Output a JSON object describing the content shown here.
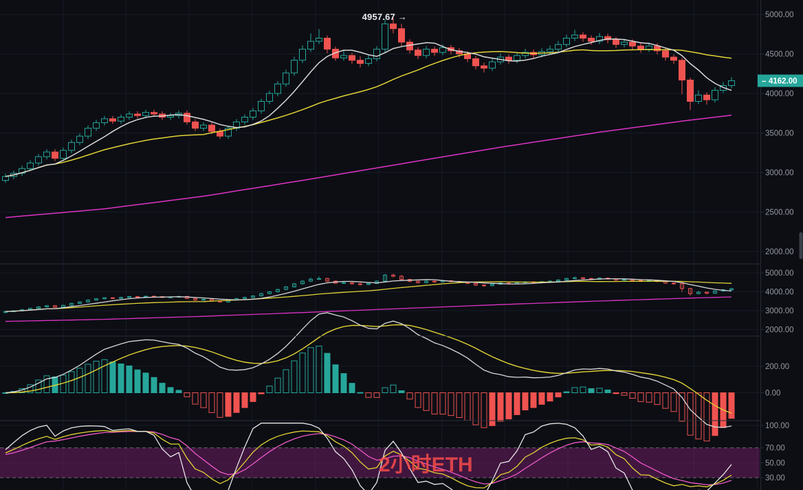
{
  "app": {
    "kind": "candlestick-trading-terminal",
    "theme": "dark"
  },
  "watermark": {
    "text": "2小时ETH"
  },
  "annotation": {
    "high_label": "4957.67",
    "arrow": "→"
  },
  "price_tag": {
    "dash": "–",
    "value": "4162.00",
    "bg": "#26a69a"
  },
  "colors": {
    "background": "#0c0e14",
    "grid": "#171b26",
    "divider": "#2a2e39",
    "axis_border": "#262b36",
    "axis_text": "#9598a1",
    "up": "#26a69a",
    "down": "#ef5350",
    "ma_fast": "#d9d9d9",
    "ma_mid": "#e3d335",
    "ma_slow": "#dd33c4",
    "macd_line": "#d9d9d9",
    "macd_signal": "#e3d335",
    "kdj_j": "#e8e8e8",
    "kdj_k": "#e3d335",
    "kdj_d": "#ef58c8",
    "band_fill": "#8e2380",
    "dashed_level": "#b2b5be",
    "scrollbar": "#3a3f4b",
    "watermark": "#f0494a"
  },
  "axes": {
    "main": [
      {
        "text": "5000.00",
        "value": 5000
      },
      {
        "text": "4500.00",
        "value": 4500
      },
      {
        "text": "4000.00",
        "value": 4000
      },
      {
        "text": "3500.00",
        "value": 3500
      },
      {
        "text": "3000.00",
        "value": 3000
      },
      {
        "text": "2500.00",
        "value": 2500
      },
      {
        "text": "2000.00",
        "value": 2000
      }
    ],
    "pane2": [
      {
        "text": "5000.00",
        "value": 5000
      },
      {
        "text": "4000.00",
        "value": 4000
      },
      {
        "text": "3000.00",
        "value": 3000
      },
      {
        "text": "2000.00",
        "value": 2000
      }
    ],
    "macd": [
      {
        "text": "200.00",
        "value": 200
      },
      {
        "text": "0.00",
        "value": 0
      }
    ],
    "kdj": [
      {
        "text": "100.00",
        "value": 100
      },
      {
        "text": "70.00",
        "value": 70
      },
      {
        "text": "50.00",
        "value": 50
      },
      {
        "text": "30.00",
        "value": 30
      }
    ]
  },
  "chart_data": {
    "type": "candlestick",
    "symbol_watermark": "2小时ETH",
    "panes": [
      {
        "name": "price",
        "y_range": [
          2000,
          5000
        ],
        "indicators": [
          "MA-fast",
          "MA-mid",
          "MA-slow"
        ]
      },
      {
        "name": "price-compressed",
        "y_range": [
          2000,
          5000
        ],
        "indicators": [
          "MA-fast",
          "MA-mid",
          "MA-slow"
        ]
      },
      {
        "name": "MACD",
        "levels": [
          200,
          0
        ],
        "indicators": [
          "DIF",
          "DEA",
          "histogram"
        ]
      },
      {
        "name": "KDJ",
        "levels": [
          100,
          70,
          50,
          30
        ],
        "band": [
          30,
          70
        ],
        "indicators": [
          "K",
          "D",
          "J"
        ]
      }
    ],
    "high_annotation": 4957.67,
    "last_price": 4162.0,
    "grid": true,
    "legend": "none",
    "candles_ohlc": [
      [
        2900,
        2985,
        2870,
        2950
      ],
      [
        2950,
        3025,
        2915,
        2990
      ],
      [
        2990,
        3085,
        2955,
        3050
      ],
      [
        3050,
        3155,
        3015,
        3120
      ],
      [
        3120,
        3235,
        3085,
        3200
      ],
      [
        3200,
        3295,
        3165,
        3260
      ],
      [
        3260,
        3295,
        3145,
        3180
      ],
      [
        3180,
        3315,
        3145,
        3280
      ],
      [
        3280,
        3415,
        3245,
        3380
      ],
      [
        3380,
        3495,
        3345,
        3460
      ],
      [
        3460,
        3595,
        3425,
        3560
      ],
      [
        3560,
        3665,
        3525,
        3630
      ],
      [
        3630,
        3715,
        3595,
        3680
      ],
      [
        3680,
        3715,
        3615,
        3650
      ],
      [
        3650,
        3735,
        3615,
        3700
      ],
      [
        3700,
        3775,
        3665,
        3740
      ],
      [
        3740,
        3775,
        3685,
        3720
      ],
      [
        3720,
        3795,
        3685,
        3760
      ],
      [
        3760,
        3795,
        3705,
        3740
      ],
      [
        3740,
        3775,
        3665,
        3700
      ],
      [
        3700,
        3755,
        3665,
        3720
      ],
      [
        3720,
        3785,
        3685,
        3750
      ],
      [
        3750,
        3785,
        3605,
        3640
      ],
      [
        3640,
        3675,
        3525,
        3560
      ],
      [
        3560,
        3635,
        3525,
        3600
      ],
      [
        3600,
        3635,
        3485,
        3520
      ],
      [
        3520,
        3555,
        3425,
        3460
      ],
      [
        3460,
        3595,
        3425,
        3560
      ],
      [
        3560,
        3675,
        3525,
        3640
      ],
      [
        3640,
        3735,
        3605,
        3700
      ],
      [
        3700,
        3815,
        3665,
        3780
      ],
      [
        3780,
        3935,
        3745,
        3900
      ],
      [
        3900,
        4035,
        3865,
        4000
      ],
      [
        4000,
        4155,
        3965,
        4120
      ],
      [
        4120,
        4300,
        4085,
        4260
      ],
      [
        4260,
        4465,
        4225,
        4420
      ],
      [
        4420,
        4610,
        4385,
        4560
      ],
      [
        4560,
        4760,
        4525,
        4660
      ],
      [
        4660,
        4815,
        4625,
        4700
      ],
      [
        4700,
        4735,
        4510,
        4560
      ],
      [
        4560,
        4595,
        4415,
        4450
      ],
      [
        4450,
        4555,
        4415,
        4480
      ],
      [
        4480,
        4515,
        4375,
        4420
      ],
      [
        4420,
        4470,
        4330,
        4380
      ],
      [
        4380,
        4490,
        4345,
        4440
      ],
      [
        4440,
        4600,
        4405,
        4560
      ],
      [
        4560,
        4940,
        4520,
        4880
      ],
      [
        4880,
        4957.67,
        4760,
        4820
      ],
      [
        4820,
        4880,
        4600,
        4650
      ],
      [
        4650,
        4685,
        4505,
        4550
      ],
      [
        4550,
        4585,
        4435,
        4480
      ],
      [
        4480,
        4600,
        4445,
        4560
      ],
      [
        4560,
        4595,
        4475,
        4520
      ],
      [
        4520,
        4620,
        4485,
        4580
      ],
      [
        4580,
        4615,
        4495,
        4540
      ],
      [
        4540,
        4575,
        4455,
        4500
      ],
      [
        4500,
        4535,
        4395,
        4440
      ],
      [
        4440,
        4475,
        4305,
        4350
      ],
      [
        4350,
        4390,
        4265,
        4320
      ],
      [
        4320,
        4445,
        4285,
        4400
      ],
      [
        4400,
        4505,
        4365,
        4460
      ],
      [
        4460,
        4495,
        4375,
        4420
      ],
      [
        4420,
        4525,
        4385,
        4480
      ],
      [
        4480,
        4565,
        4445,
        4520
      ],
      [
        4520,
        4555,
        4445,
        4490
      ],
      [
        4490,
        4575,
        4455,
        4530
      ],
      [
        4530,
        4605,
        4495,
        4560
      ],
      [
        4560,
        4665,
        4525,
        4620
      ],
      [
        4620,
        4745,
        4585,
        4700
      ],
      [
        4700,
        4805,
        4665,
        4740
      ],
      [
        4740,
        4775,
        4655,
        4700
      ],
      [
        4700,
        4735,
        4615,
        4660
      ],
      [
        4660,
        4765,
        4625,
        4720
      ],
      [
        4720,
        4755,
        4635,
        4680
      ],
      [
        4680,
        4715,
        4575,
        4620
      ],
      [
        4620,
        4695,
        4585,
        4650
      ],
      [
        4650,
        4685,
        4555,
        4600
      ],
      [
        4600,
        4635,
        4515,
        4560
      ],
      [
        4560,
        4645,
        4525,
        4600
      ],
      [
        4600,
        4635,
        4495,
        4540
      ],
      [
        4540,
        4575,
        4415,
        4460
      ],
      [
        4460,
        4495,
        4375,
        4420
      ],
      [
        4420,
        4450,
        3990,
        4170
      ],
      [
        4170,
        4200,
        3790,
        3900
      ],
      [
        3900,
        4040,
        3865,
        3980
      ],
      [
        3980,
        4015,
        3860,
        3920
      ],
      [
        3920,
        4080,
        3885,
        4040
      ],
      [
        4040,
        4145,
        4005,
        4100
      ],
      [
        4100,
        4205,
        4065,
        4162
      ]
    ],
    "slow_ma_anchors": [
      [
        0,
        2430
      ],
      [
        12,
        2540
      ],
      [
        24,
        2700
      ],
      [
        36,
        2900
      ],
      [
        48,
        3110
      ],
      [
        60,
        3320
      ],
      [
        72,
        3510
      ],
      [
        82,
        3650
      ],
      [
        88,
        3725
      ]
    ]
  }
}
